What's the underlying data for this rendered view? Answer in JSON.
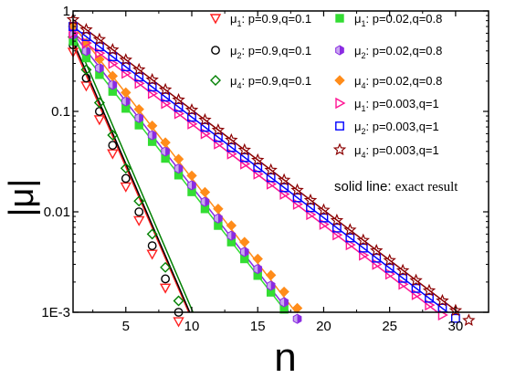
{
  "chart_data": {
    "type": "scatter",
    "xlabel": "n",
    "ylabel": "|μ|",
    "xlim": [
      1,
      32.5
    ],
    "ylim": [
      0.001,
      1
    ],
    "yscale": "log",
    "xticks": [
      5,
      10,
      15,
      20,
      25,
      30
    ],
    "xtick_labels": [
      "5",
      "10",
      "15",
      "20",
      "25",
      "30"
    ],
    "yticks": [
      1,
      0.1,
      0.01,
      0.001
    ],
    "ytick_labels": [
      "1",
      "0.1",
      "0.01",
      "1E-3"
    ],
    "grid": false,
    "legend_position": "top-right",
    "annotation": {
      "prefix": "solid line:",
      "suffix": "exact result"
    },
    "series": [
      {
        "name": "μ1: p=0.9,q=0.1",
        "legend_mu": "μ",
        "legend_sub": "1",
        "legend_rest": ": p=0.9,q=0.1",
        "marker": "triangle-down",
        "color": "#ff2020",
        "x": [
          1,
          2,
          3,
          4,
          5,
          6,
          7,
          8,
          9
        ],
        "y": [
          0.39,
          0.18,
          0.083,
          0.038,
          0.0178,
          0.0082,
          0.0038,
          0.00175,
          0.00081
        ],
        "fit": {
          "x": [
            1,
            10
          ],
          "y": [
            0.46,
            0.00085
          ]
        }
      },
      {
        "name": "μ2: p=0.9,q=0.1",
        "legend_mu": "μ",
        "legend_sub": "2",
        "legend_rest": ": p=0.9,q=0.1",
        "marker": "circle",
        "color": "#000000",
        "x": [
          1,
          2,
          3,
          4,
          5,
          6,
          7,
          8,
          9
        ],
        "y": [
          0.46,
          0.215,
          0.1,
          0.046,
          0.0215,
          0.01,
          0.0046,
          0.00215,
          0.001
        ],
        "fit": {
          "x": [
            1,
            10.2
          ],
          "y": [
            0.5,
            0.00078
          ]
        }
      },
      {
        "name": "μ4: p=0.9,q=0.1",
        "legend_mu": "μ",
        "legend_sub": "4",
        "legend_rest": ": p=0.9,q=0.1",
        "marker": "diamond",
        "color": "#008000",
        "x": [
          1,
          2,
          3,
          4,
          5,
          6,
          7,
          8,
          9
        ],
        "y": [
          0.55,
          0.26,
          0.122,
          0.058,
          0.0272,
          0.0128,
          0.006,
          0.0028,
          0.0013
        ],
        "fit": {
          "x": [
            1,
            10.5
          ],
          "y": [
            0.6,
            0.00075
          ]
        }
      },
      {
        "name": "μ1: p=0.02,q=0.8",
        "legend_mu": "μ",
        "legend_sub": "1",
        "legend_rest": ": p=0.02,q=0.8",
        "marker": "square-filled",
        "color": "#33dd33",
        "x": [
          1,
          2,
          3,
          4,
          5,
          6,
          7,
          8,
          9,
          10,
          11,
          12,
          13,
          14,
          15,
          16,
          17,
          18
        ],
        "y": [
          0.5,
          0.34,
          0.232,
          0.158,
          0.107,
          0.073,
          0.05,
          0.034,
          0.0232,
          0.0158,
          0.0107,
          0.0073,
          0.005,
          0.0034,
          0.00232,
          0.00158,
          0.00107,
          0.00073
        ],
        "fit": {
          "x": [
            1,
            18.5
          ],
          "y": [
            0.52,
            0.0006
          ]
        }
      },
      {
        "name": "μ2: p=0.02,q=0.8",
        "legend_mu": "μ",
        "legend_sub": "2",
        "legend_rest": ": p=0.02,q=0.8",
        "marker": "hexagon-half",
        "color": "#8a2be2",
        "x": [
          1,
          2,
          3,
          4,
          5,
          6,
          7,
          8,
          9,
          10,
          11,
          12,
          13,
          14,
          15,
          16,
          17,
          18
        ],
        "y": [
          0.58,
          0.4,
          0.27,
          0.184,
          0.126,
          0.086,
          0.058,
          0.04,
          0.027,
          0.0184,
          0.0126,
          0.0086,
          0.0058,
          0.004,
          0.0027,
          0.00184,
          0.00126,
          0.00086
        ],
        "fit": {
          "x": [
            1,
            18.7
          ],
          "y": [
            0.6,
            0.0006
          ]
        }
      },
      {
        "name": "μ4: p=0.02,q=0.8",
        "legend_mu": "μ",
        "legend_sub": "4",
        "legend_rest": ": p=0.02,q=0.8",
        "marker": "diamond-filled",
        "color": "#ff8c1a",
        "x": [
          1,
          2,
          3,
          4,
          5,
          6,
          7,
          8,
          9,
          10,
          11,
          12,
          13,
          14,
          15,
          16,
          17,
          18,
          19
        ],
        "y": [
          0.7,
          0.48,
          0.33,
          0.225,
          0.154,
          0.105,
          0.072,
          0.049,
          0.0335,
          0.0229,
          0.0157,
          0.0107,
          0.0073,
          0.005,
          0.0034,
          0.00234,
          0.0016,
          0.0011,
          0.00075
        ],
        "fit": {
          "x": [
            1,
            19.2
          ],
          "y": [
            0.72,
            0.0006
          ]
        }
      },
      {
        "name": "μ1: p=0.003,q=1",
        "legend_mu": "μ",
        "legend_sub": "1",
        "legend_rest": ": p=0.003,q=1",
        "marker": "triangle-right",
        "color": "#ff1493",
        "x": [
          1,
          2,
          3,
          4,
          5,
          6,
          7,
          8,
          9,
          10,
          11,
          12,
          13,
          14,
          15,
          16,
          17,
          18,
          19,
          20,
          21,
          22,
          23,
          24,
          25,
          26,
          27,
          28,
          29
        ],
        "y": [
          0.6,
          0.48,
          0.38,
          0.3,
          0.24,
          0.19,
          0.151,
          0.12,
          0.095,
          0.075,
          0.06,
          0.0475,
          0.0377,
          0.03,
          0.0238,
          0.0189,
          0.015,
          0.0119,
          0.0094,
          0.0075,
          0.0059,
          0.0047,
          0.0037,
          0.003,
          0.0024,
          0.0019,
          0.0015,
          0.00118,
          0.00094
        ],
        "fit": {
          "x": [
            1,
            30.3
          ],
          "y": [
            0.6,
            0.00068
          ]
        }
      },
      {
        "name": "μ2: p=0.003,q=1",
        "legend_mu": "μ",
        "legend_sub": "2",
        "legend_rest": ": p=0.003,q=1",
        "marker": "square",
        "color": "#0000ff",
        "x": [
          1,
          2,
          3,
          4,
          5,
          6,
          7,
          8,
          9,
          10,
          11,
          12,
          13,
          14,
          15,
          16,
          17,
          18,
          19,
          20,
          21,
          22,
          23,
          24,
          25,
          26,
          27,
          28,
          29,
          30
        ],
        "y": [
          0.7,
          0.556,
          0.44,
          0.35,
          0.278,
          0.22,
          0.175,
          0.139,
          0.11,
          0.0875,
          0.0695,
          0.055,
          0.0437,
          0.0347,
          0.0276,
          0.0219,
          0.0174,
          0.0138,
          0.011,
          0.0087,
          0.0069,
          0.0055,
          0.00436,
          0.00346,
          0.00275,
          0.00218,
          0.00173,
          0.00138,
          0.0011,
          0.00087
        ],
        "fit": {
          "x": [
            1,
            31
          ],
          "y": [
            0.7,
            0.00069
          ]
        }
      },
      {
        "name": "μ4: p=0.003,q=1",
        "legend_mu": "μ",
        "legend_sub": "4",
        "legend_rest": ": p=0.003,q=1",
        "marker": "star",
        "color": "#8b0000",
        "x": [
          1,
          2,
          3,
          4,
          5,
          6,
          7,
          8,
          9,
          10,
          11,
          12,
          13,
          14,
          15,
          16,
          17,
          18,
          19,
          20,
          21,
          22,
          23,
          24,
          25,
          26,
          27,
          28,
          29,
          30,
          31
        ],
        "y": [
          0.82,
          0.65,
          0.52,
          0.41,
          0.325,
          0.26,
          0.206,
          0.164,
          0.13,
          0.103,
          0.082,
          0.065,
          0.0518,
          0.0412,
          0.0327,
          0.026,
          0.0207,
          0.0164,
          0.013,
          0.0104,
          0.0082,
          0.0066,
          0.0052,
          0.0041,
          0.00328,
          0.0026,
          0.00207,
          0.00164,
          0.0013,
          0.00104,
          0.00083
        ],
        "fit": {
          "x": [
            1,
            32
          ],
          "y": [
            0.82,
            0.00066
          ]
        }
      }
    ]
  }
}
